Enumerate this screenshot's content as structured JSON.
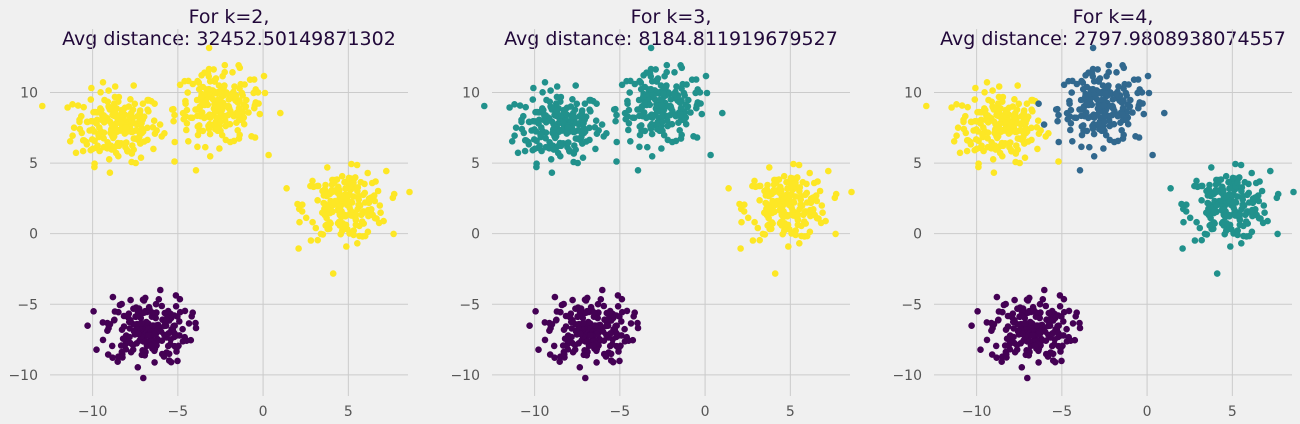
{
  "chart_data": [
    {
      "type": "scatter",
      "title_line1": "For k=2,",
      "title_line2": "Avg distance: 32452.50149871302",
      "k": 2,
      "xlim": [
        -12.5,
        8.5
      ],
      "ylim": [
        -11.5,
        14.5
      ],
      "xticks": [
        -10,
        -5,
        0,
        5
      ],
      "yticks": [
        -10,
        -5,
        0,
        5,
        10
      ],
      "xtick_labels": [
        "−10",
        "−5",
        "0",
        "5"
      ],
      "ytick_labels": [
        "−10",
        "−5",
        "0",
        "5",
        "10"
      ],
      "grid": true,
      "blob_colors": [
        "#fde725",
        "#fde725",
        "#fde725",
        "#440154"
      ]
    },
    {
      "type": "scatter",
      "title_line1": "For k=3,",
      "title_line2": "Avg distance: 8184.811919679527",
      "k": 3,
      "xlim": [
        -12.5,
        8.5
      ],
      "ylim": [
        -11.5,
        14.5
      ],
      "xticks": [
        -10,
        -5,
        0,
        5
      ],
      "yticks": [
        -10,
        -5,
        0,
        5,
        10
      ],
      "xtick_labels": [
        "−10",
        "−5",
        "0",
        "5"
      ],
      "ytick_labels": [
        "−10",
        "−5",
        "0",
        "5",
        "10"
      ],
      "grid": true,
      "blob_colors": [
        "#21918c",
        "#21918c",
        "#fde725",
        "#440154"
      ]
    },
    {
      "type": "scatter",
      "title_line1": "For k=4,",
      "title_line2": "Avg distance: 2797.9808938074557",
      "k": 4,
      "xlim": [
        -12.5,
        8.5
      ],
      "ylim": [
        -11.5,
        14.5
      ],
      "xticks": [
        -10,
        -5,
        0,
        5
      ],
      "yticks": [
        -10,
        -5,
        0,
        5,
        10
      ],
      "xtick_labels": [
        "−10",
        "−5",
        "0",
        "5"
      ],
      "ytick_labels": [
        "−10",
        "−5",
        "0",
        "5",
        "10"
      ],
      "grid": true,
      "blob_colors": [
        "#fde725",
        "#31688e",
        "#21918c",
        "#440154"
      ]
    }
  ],
  "blobs": [
    {
      "cx": -8.6,
      "cy": 7.6,
      "sd": 1.25,
      "n": 210
    },
    {
      "cx": -2.6,
      "cy": 8.9,
      "sd": 1.3,
      "n": 210
    },
    {
      "cx": 4.8,
      "cy": 2.0,
      "sd": 1.2,
      "n": 210
    },
    {
      "cx": -6.8,
      "cy": -6.8,
      "sd": 1.2,
      "n": 210
    }
  ]
}
